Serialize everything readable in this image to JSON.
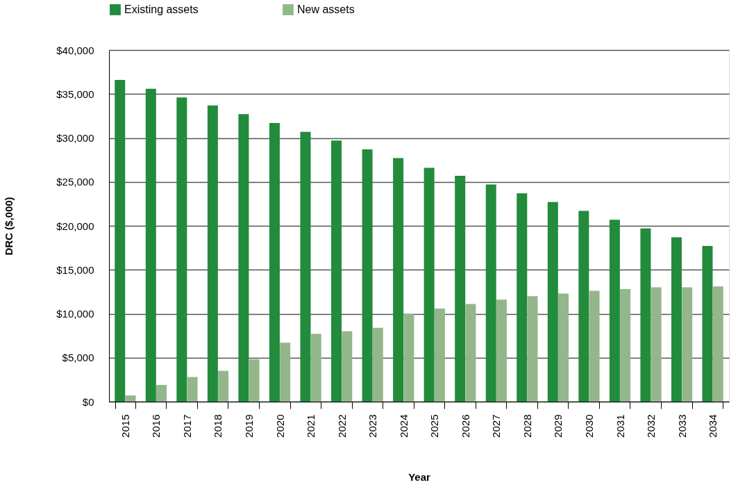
{
  "chart_data": {
    "type": "bar",
    "xlabel": "Year",
    "ylabel": "DRC ($,000)",
    "categories": [
      "2015",
      "2016",
      "2017",
      "2018",
      "2019",
      "2020",
      "2021",
      "2022",
      "2023",
      "2024",
      "2025",
      "2026",
      "2027",
      "2028",
      "2029",
      "2030",
      "2031",
      "2032",
      "2033",
      "2034"
    ],
    "series": [
      {
        "name": "Existing assets",
        "color": "#228b3c",
        "values": [
          36600,
          35600,
          34600,
          33700,
          32700,
          31700,
          30700,
          29700,
          28700,
          27700,
          26600,
          25700,
          24700,
          23700,
          22700,
          21700,
          20700,
          19700,
          18700,
          17700
        ]
      },
      {
        "name": "New assets",
        "color": "#93b78a",
        "values": [
          700,
          1900,
          2800,
          3500,
          4800,
          6700,
          7700,
          8000,
          8400,
          10000,
          10600,
          11100,
          11600,
          12000,
          12300,
          12600,
          12800,
          13000,
          13000,
          13100
        ]
      }
    ],
    "ylim": [
      0,
      40000
    ],
    "yticks": [
      {
        "value": 0,
        "label": "$0"
      },
      {
        "value": 5000,
        "label": "$5,000"
      },
      {
        "value": 10000,
        "label": "$10,000"
      },
      {
        "value": 15000,
        "label": "$15,000"
      },
      {
        "value": 20000,
        "label": "$20,000"
      },
      {
        "value": 25000,
        "label": "$25,000"
      },
      {
        "value": 30000,
        "label": "$30,000"
      },
      {
        "value": 35000,
        "label": "$35,000"
      },
      {
        "value": 40000,
        "label": "$40,000"
      }
    ],
    "grid": "y",
    "legend": "top"
  }
}
